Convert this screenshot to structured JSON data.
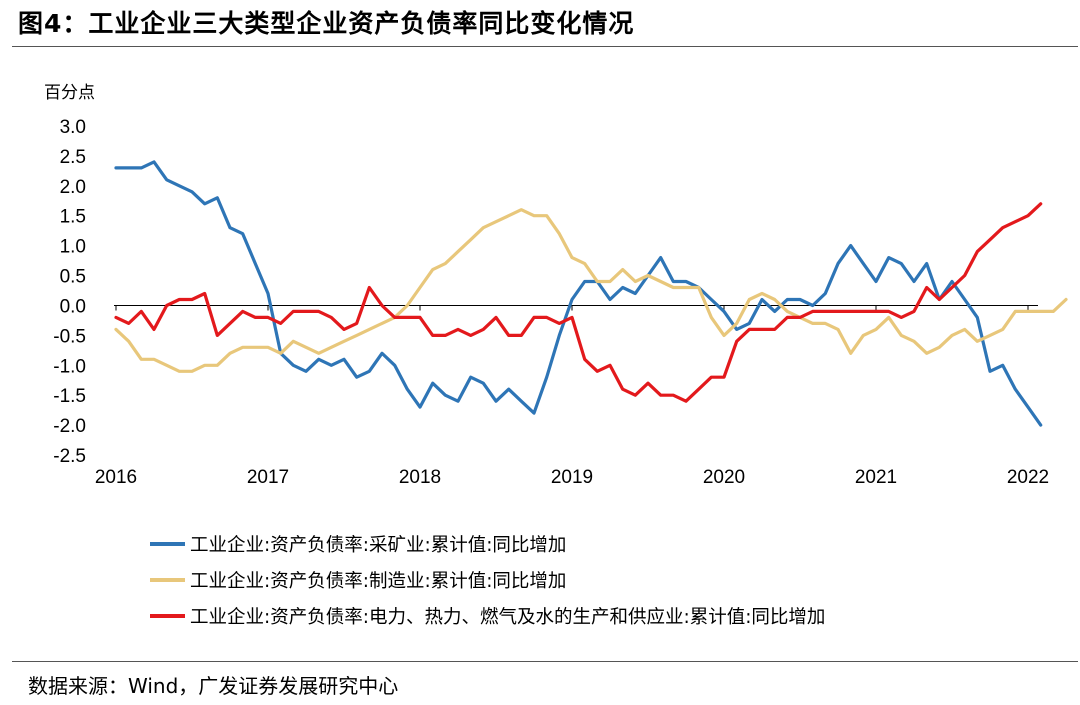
{
  "figure": {
    "title": "图4：工业企业三大类型企业资产负债率同比变化情况",
    "source_label": "数据来源：",
    "source_text": "Wind，广发证券发展研究中心"
  },
  "chart_data": {
    "type": "line",
    "title": "工业企业三大类型企业资产负债率同比变化情况",
    "ylabel": "百分点",
    "xlabel": "",
    "ylim": [
      -2.5,
      3.0
    ],
    "y_ticks": [
      "3.0",
      "2.5",
      "2.0",
      "1.5",
      "1.0",
      "0.5",
      "0.0",
      "-0.5",
      "-1.0",
      "-1.5",
      "-2.0",
      "-2.5"
    ],
    "x_tick_labels": [
      "2016",
      "2017",
      "2018",
      "2019",
      "2020",
      "2021",
      "2022"
    ],
    "x_start": 2016.0,
    "x_step": 0.0833333,
    "grid": false,
    "legend_position": "bottom",
    "series": [
      {
        "name": "工业企业:资产负债率:采矿业:累计值:同比增加",
        "color": "#2E75B6",
        "values": [
          2.3,
          2.3,
          2.3,
          2.4,
          2.1,
          2.0,
          1.9,
          1.7,
          1.8,
          1.3,
          1.2,
          0.7,
          0.2,
          -0.8,
          -1.0,
          -1.1,
          -0.9,
          -1.0,
          -0.9,
          -1.2,
          -1.1,
          -0.8,
          -1.0,
          -1.4,
          -1.7,
          -1.3,
          -1.5,
          -1.6,
          -1.2,
          -1.3,
          -1.6,
          -1.4,
          -1.6,
          -1.8,
          -1.2,
          -0.5,
          0.1,
          0.4,
          0.4,
          0.1,
          0.3,
          0.2,
          0.5,
          0.8,
          0.4,
          0.4,
          0.3,
          0.1,
          -0.1,
          -0.4,
          -0.3,
          0.1,
          -0.1,
          0.1,
          0.1,
          0.0,
          0.2,
          0.7,
          1.0,
          0.7,
          0.4,
          0.8,
          0.7,
          0.4,
          0.7,
          0.1,
          0.4,
          0.1,
          -0.2,
          -1.1,
          -1.0,
          -1.4,
          -1.7,
          -2.0
        ]
      },
      {
        "name": "工业企业:资产负债率:制造业:累计值:同比增加",
        "color": "#E8C77B",
        "values": [
          -0.4,
          -0.6,
          -0.9,
          -0.9,
          -1.0,
          -1.1,
          -1.1,
          -1.0,
          -1.0,
          -0.8,
          -0.7,
          -0.7,
          -0.7,
          -0.8,
          -0.6,
          -0.7,
          -0.8,
          -0.7,
          -0.6,
          -0.5,
          -0.4,
          -0.3,
          -0.2,
          0.0,
          0.3,
          0.6,
          0.7,
          0.9,
          1.1,
          1.3,
          1.4,
          1.5,
          1.6,
          1.5,
          1.5,
          1.2,
          0.8,
          0.7,
          0.4,
          0.4,
          0.6,
          0.4,
          0.5,
          0.4,
          0.3,
          0.3,
          0.3,
          -0.2,
          -0.5,
          -0.3,
          0.1,
          0.2,
          0.1,
          -0.1,
          -0.2,
          -0.3,
          -0.3,
          -0.4,
          -0.8,
          -0.5,
          -0.4,
          -0.2,
          -0.5,
          -0.6,
          -0.8,
          -0.7,
          -0.5,
          -0.4,
          -0.6,
          -0.5,
          -0.4,
          -0.1,
          -0.1,
          -0.1,
          -0.1,
          0.1
        ]
      },
      {
        "name": "工业企业:资产负债率:电力、热力、燃气及水的生产和供应业:累计值:同比增加",
        "color": "#E3191C",
        "values": [
          -0.2,
          -0.3,
          -0.1,
          -0.4,
          0.0,
          0.1,
          0.1,
          0.2,
          -0.5,
          -0.3,
          -0.1,
          -0.2,
          -0.2,
          -0.3,
          -0.1,
          -0.1,
          -0.1,
          -0.2,
          -0.4,
          -0.3,
          0.3,
          0.0,
          -0.2,
          -0.2,
          -0.2,
          -0.5,
          -0.5,
          -0.4,
          -0.5,
          -0.4,
          -0.2,
          -0.5,
          -0.5,
          -0.2,
          -0.2,
          -0.3,
          -0.2,
          -0.9,
          -1.1,
          -1.0,
          -1.4,
          -1.5,
          -1.3,
          -1.5,
          -1.5,
          -1.6,
          -1.4,
          -1.2,
          -1.2,
          -0.6,
          -0.4,
          -0.4,
          -0.4,
          -0.2,
          -0.2,
          -0.1,
          -0.1,
          -0.1,
          -0.1,
          -0.1,
          -0.1,
          -0.1,
          -0.2,
          -0.1,
          0.3,
          0.1,
          0.3,
          0.5,
          0.9,
          1.1,
          1.3,
          1.4,
          1.5,
          1.7
        ]
      }
    ]
  }
}
